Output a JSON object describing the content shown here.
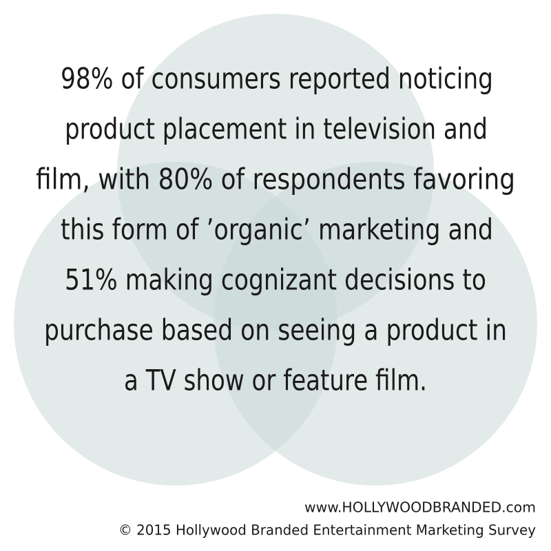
{
  "body": {
    "lines": [
      "98% of consumers reported noticing",
      "product placement in television and",
      "film, with 80% of respondents favoring",
      "this form of ’organic’ marketing and",
      "51% making cognizant decisions to",
      "purchase based on seeing a product in",
      "a TV show or feature film."
    ]
  },
  "footer": {
    "website": "www.HOLLYWOODBRANDED.com",
    "copyright": "© 2015 Hollywood Branded Entertainment Marketing Survey"
  }
}
